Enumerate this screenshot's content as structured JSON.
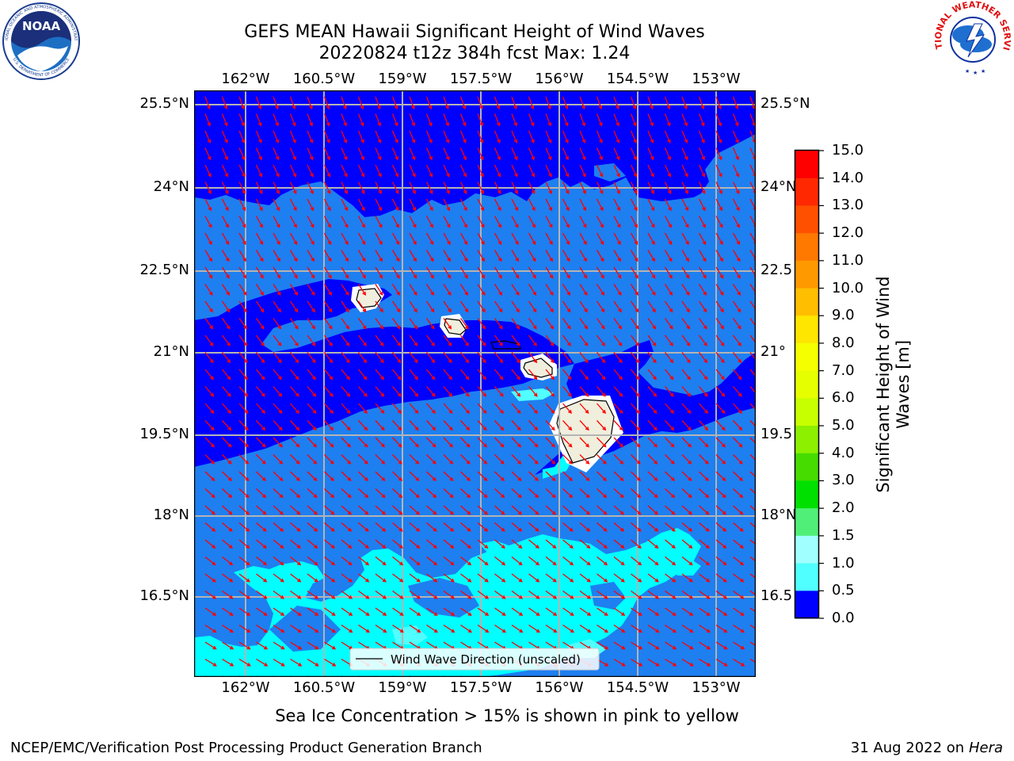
{
  "header": {
    "title_line1": "GEFS MEAN Hawaii Significant Height of Wind Waves",
    "title_line2": "20220824 t12z 384h fcst   Max: 1.24",
    "logo_left_text": "NOAA",
    "logo_left_ring_top": "NATIONAL OCEANIC AND ATMOSPHERIC ADMINISTRATION",
    "logo_left_ring_bottom": "U.S. DEPARTMENT OF COMMERCE",
    "logo_right_ring": "NATIONAL WEATHER SERVICE"
  },
  "map": {
    "lon_labels": [
      "162°W",
      "160.5°W",
      "159°W",
      "157.5°W",
      "156°W",
      "154.5°W",
      "153°W"
    ],
    "lat_labels_left": [
      "25.5°N",
      "24°N",
      "22.5°N",
      "21°N",
      "19.5°N",
      "18°N",
      "16.5°N"
    ],
    "lat_labels_right": [
      "25.5°N",
      "24°N",
      "22.5",
      "21°",
      "19.5",
      "18°N",
      "16.5"
    ],
    "legend_label": "Wind Wave Direction (unscaled)",
    "max_value": 1.24
  },
  "colorbar": {
    "ticks": [
      "15.0",
      "14.0",
      "13.0",
      "12.0",
      "11.0",
      "10.0",
      "9.0",
      "8.0",
      "7.0",
      "6.0",
      "5.0",
      "4.0",
      "3.0",
      "2.0",
      "1.5",
      "1.0",
      "0.5",
      "0.0"
    ],
    "colors": [
      "#ff0000",
      "#ff2800",
      "#ff5000",
      "#ff7800",
      "#ff9900",
      "#ffbe00",
      "#ffe600",
      "#f5ff00",
      "#e6ff00",
      "#c8ff00",
      "#8cf000",
      "#46dc00",
      "#00e000",
      "#50f078",
      "#a0ffff",
      "#50ffff",
      "#00ffff",
      "#0f7fff",
      "#0000ff"
    ],
    "label_line1": "Significant Height of Wind",
    "label_line2": "Waves [m]"
  },
  "legend_colors": {
    "dark_blue": "#0000ff",
    "mid_blue": "#1e7ff0",
    "cyan": "#00ffff",
    "land": "#f0eedc",
    "arrows": "#ff0000",
    "grid": "#b4b4b4"
  },
  "footer": {
    "subtitle": "Sea Ice Concentration > 15% is shown in pink to yellow",
    "left": "NCEP/EMC/Verification Post Processing Product Generation Branch",
    "right_date": "31 Aug 2022 on",
    "right_host": "Hera"
  }
}
